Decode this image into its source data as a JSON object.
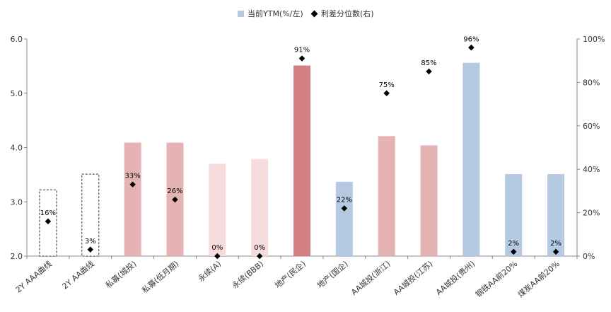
{
  "chart_data": {
    "type": "bar",
    "categories": [
      "2Y AAA曲线",
      "2Y AA曲线",
      "私募(城投)",
      "私募(低月期)",
      "永续(A)",
      "永续(BBB)",
      "地产(民企)",
      "地产(国企)",
      "AA城投(浙江)",
      "AA城投(江苏)",
      "AA城投(贵州)",
      "钢铁AA前20%",
      "煤炭AA前20%"
    ],
    "series": [
      {
        "name": "当前YTM(%/左)",
        "axis": "left",
        "values": [
          3.22,
          3.51,
          4.09,
          4.09,
          3.7,
          3.79,
          5.51,
          3.37,
          4.21,
          4.04,
          5.56,
          3.51,
          3.51
        ],
        "colors": [
          "dashed",
          "dashed",
          "#e6b3b5",
          "#e6b3b5",
          "#f6dcdc",
          "#f6dcdc",
          "#d47f84",
          "#b6c9e3",
          "#e6b3b5",
          "#e6b3b5",
          "#b6c9e3",
          "#b6c9e3",
          "#b6c9e3"
        ]
      },
      {
        "name": "利差分位数(右)",
        "axis": "right",
        "values": [
          16,
          3,
          33,
          26,
          0,
          0,
          91,
          22,
          75,
          85,
          96,
          2,
          2
        ],
        "labels": [
          "16%",
          "3%",
          "33%",
          "26%",
          "0%",
          "0%",
          "91%",
          "22%",
          "75%",
          "85%",
          "96%",
          "2%",
          "2%"
        ]
      }
    ],
    "y_left": {
      "ylim": [
        2.0,
        6.0
      ],
      "ticks": [
        "2.0",
        "3.0",
        "4.0",
        "5.0",
        "6.0"
      ]
    },
    "y_right": {
      "ylim": [
        0,
        100
      ],
      "ticks": [
        "0%",
        "20%",
        "40%",
        "60%",
        "80%",
        "100%"
      ]
    },
    "legend": {
      "placement": "top-center"
    },
    "grid": false
  }
}
